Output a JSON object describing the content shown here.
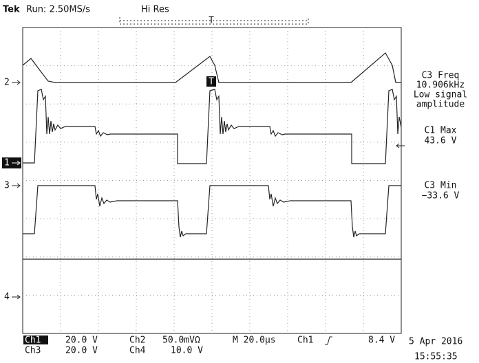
{
  "header": {
    "brand": "Tek",
    "status": "Run: 2.50MS/s",
    "mode": "Hi Res"
  },
  "trigger_label": "T",
  "channel_markers": [
    "2",
    "1",
    "3",
    "4"
  ],
  "measurements": [
    {
      "lines": [
        "C3 Freq",
        "10.906kHz",
        "Low signal",
        "amplitude"
      ]
    },
    {
      "lines": [
        "C1 Max",
        "43.6 V"
      ]
    },
    {
      "lines": [
        "C3 Min",
        "−33.6 V"
      ]
    }
  ],
  "footer": {
    "row1": [
      "Ch1",
      "20.0 V",
      "Ch2",
      "50.0mVΩ",
      "M 20.0µs",
      "Ch1",
      "8.4 V"
    ],
    "row2": [
      "Ch3",
      "20.0 V",
      "Ch4",
      "10.0 V"
    ],
    "date": "5 Apr 2016",
    "time": "15:55:35"
  }
}
